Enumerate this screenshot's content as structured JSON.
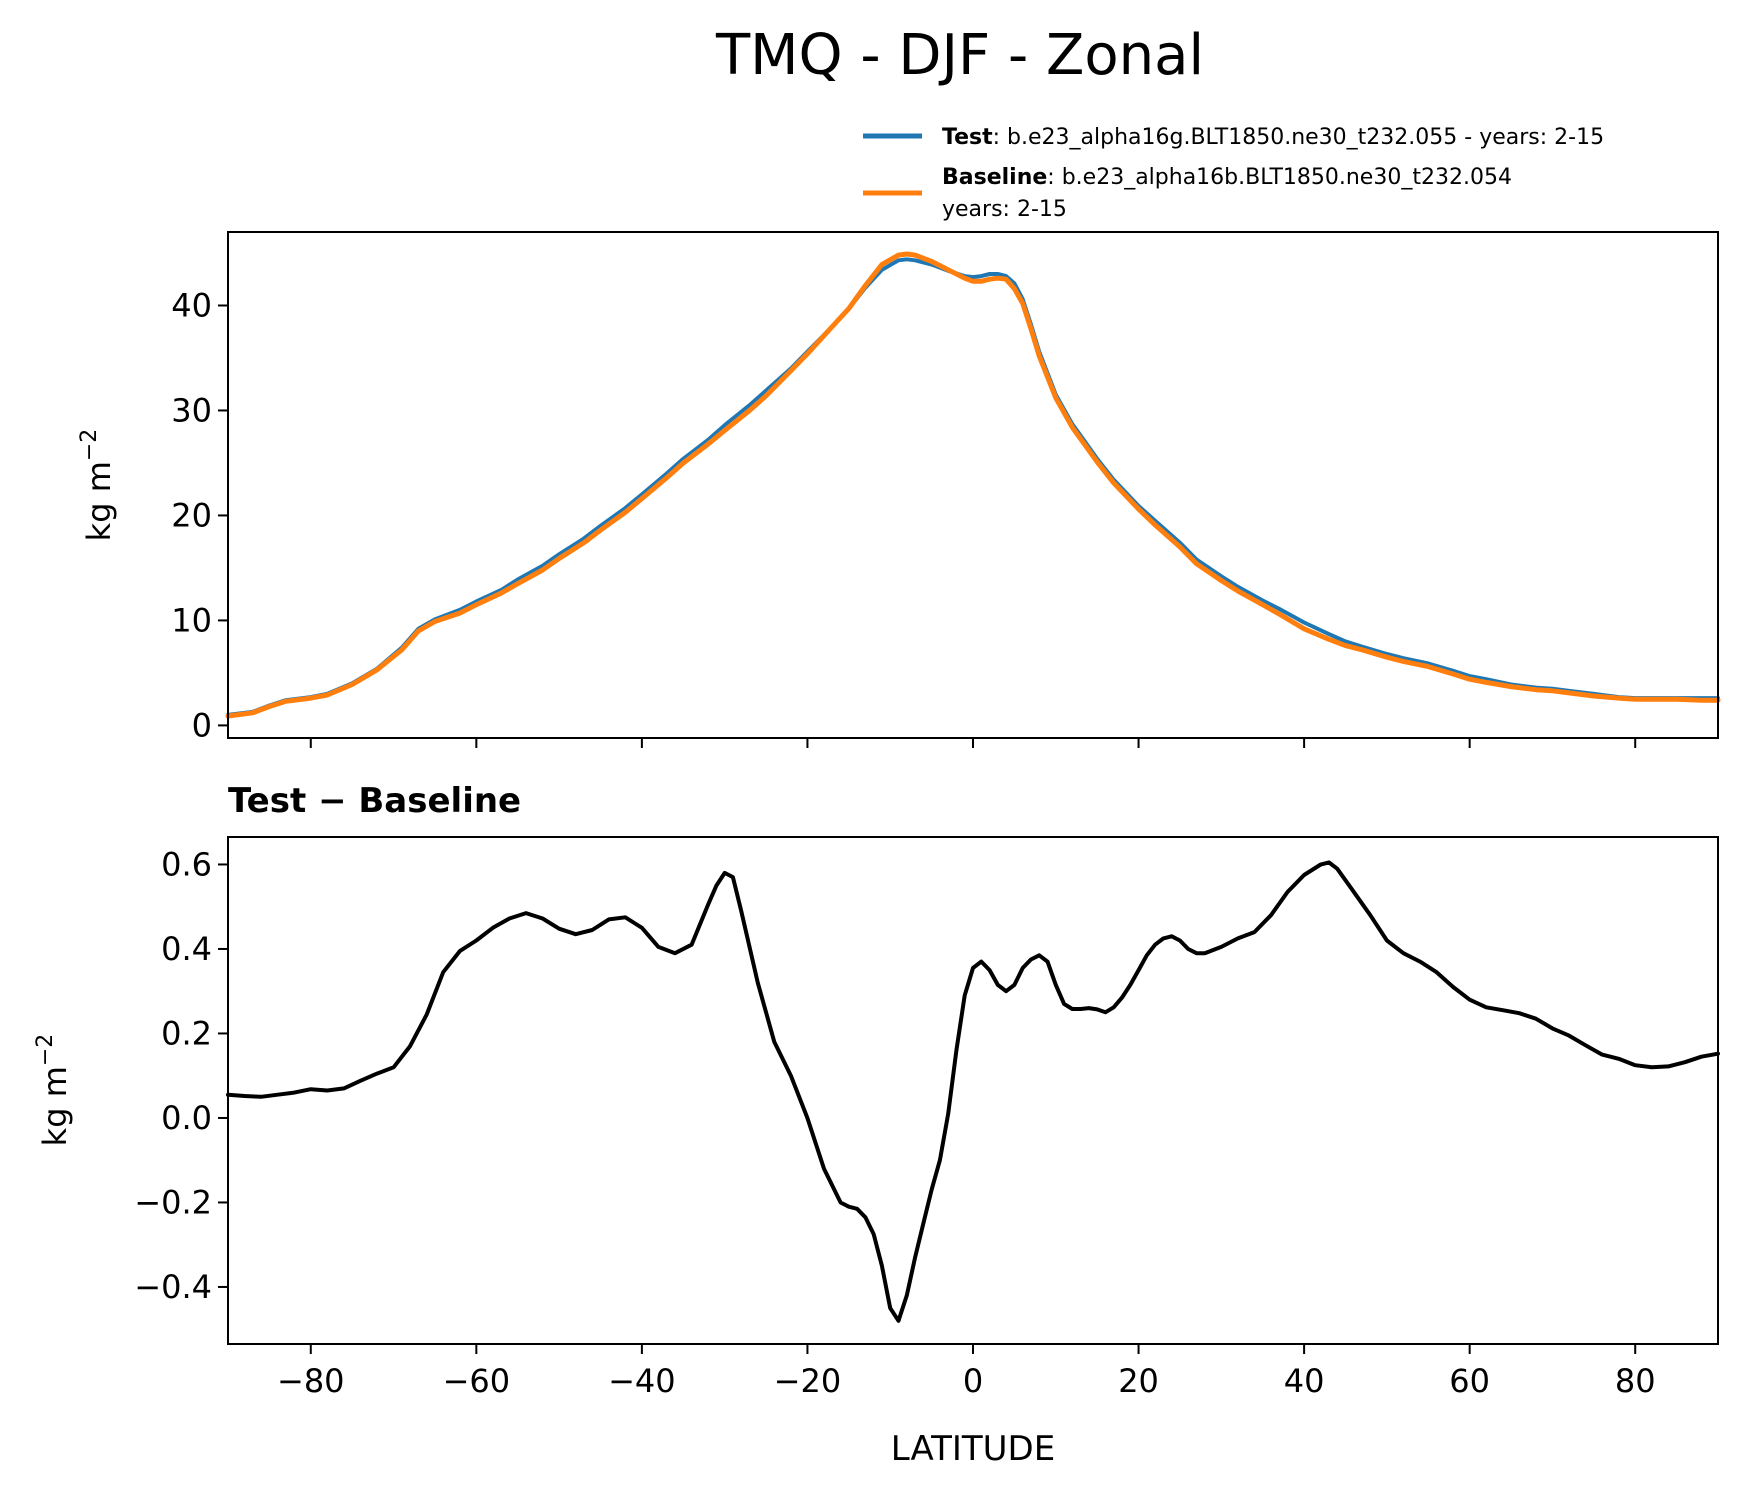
{
  "title": "TMQ - DJF - Zonal",
  "legend": {
    "test_name": "Test",
    "test_desc": ": b.e23_alpha16g.BLT1850.ne30_t232.055 - years: 2-15",
    "baseline_name": "Baseline",
    "baseline_desc": ": b.e23_alpha16b.BLT1850.ne30_t232.054",
    "baseline_desc2": "years: 2-15"
  },
  "colors": {
    "test": "#1f77b4",
    "baseline": "#ff7f0e",
    "diff": "#000000"
  },
  "chart_data": [
    {
      "type": "line",
      "title": "",
      "xlabel": "",
      "ylabel": "kg m^-2",
      "ylabel_base": "kg m",
      "ylabel_sup": "−2",
      "xlim": [
        -90,
        90
      ],
      "ylim": [
        -1.2,
        47
      ],
      "xticks": [
        -80,
        -60,
        -40,
        -20,
        0,
        20,
        40,
        60,
        80
      ],
      "yticks": [
        0,
        10,
        20,
        30,
        40
      ],
      "ytick_labels": [
        "0",
        "10",
        "20",
        "30",
        "40"
      ],
      "x": [
        -90,
        -87,
        -85,
        -83,
        -80,
        -78,
        -75,
        -72,
        -69,
        -67,
        -65,
        -62,
        -60,
        -57,
        -55,
        -52,
        -50,
        -47,
        -45,
        -42,
        -40,
        -37,
        -35,
        -32,
        -30,
        -27,
        -25,
        -22,
        -20,
        -17,
        -15,
        -13,
        -11,
        -9,
        -8,
        -7,
        -5,
        -3,
        -1,
        0,
        1,
        2,
        3,
        4,
        5,
        6,
        7,
        8,
        10,
        12,
        15,
        17,
        20,
        22,
        25,
        27,
        30,
        32,
        35,
        37,
        40,
        43,
        45,
        47,
        50,
        52,
        55,
        58,
        60,
        62,
        65,
        68,
        70,
        72,
        75,
        78,
        80,
        82,
        85,
        88,
        90
      ],
      "series": [
        {
          "name": "Test",
          "values": [
            1.0,
            1.3,
            1.9,
            2.4,
            2.7,
            3.0,
            4.0,
            5.4,
            7.4,
            9.2,
            10.1,
            11.0,
            11.8,
            12.9,
            13.9,
            15.2,
            16.3,
            17.8,
            19.0,
            20.7,
            22.0,
            24.0,
            25.4,
            27.2,
            28.6,
            30.5,
            31.9,
            34.0,
            35.6,
            38.0,
            39.7,
            41.7,
            43.4,
            44.3,
            44.4,
            44.3,
            43.9,
            43.3,
            42.8,
            42.7,
            42.8,
            43.0,
            43.0,
            42.8,
            42.1,
            40.6,
            38.2,
            35.6,
            31.5,
            28.7,
            25.4,
            23.4,
            20.9,
            19.5,
            17.4,
            15.8,
            14.2,
            13.2,
            11.9,
            11.1,
            9.8,
            8.7,
            8.0,
            7.5,
            6.8,
            6.4,
            5.9,
            5.2,
            4.7,
            4.4,
            3.9,
            3.6,
            3.5,
            3.3,
            3.0,
            2.7,
            2.6,
            2.6,
            2.6,
            2.6,
            2.6
          ]
        },
        {
          "name": "Baseline",
          "values": [
            0.9,
            1.2,
            1.8,
            2.3,
            2.6,
            2.9,
            3.9,
            5.3,
            7.2,
            9.0,
            9.9,
            10.7,
            11.5,
            12.6,
            13.5,
            14.8,
            15.9,
            17.4,
            18.6,
            20.3,
            21.6,
            23.6,
            25.0,
            26.8,
            28.1,
            30.0,
            31.4,
            33.8,
            35.4,
            38.0,
            39.7,
            41.9,
            43.9,
            44.8,
            44.9,
            44.8,
            44.2,
            43.4,
            42.6,
            42.3,
            42.3,
            42.5,
            42.6,
            42.5,
            41.6,
            40.2,
            37.8,
            35.2,
            31.2,
            28.4,
            25.1,
            23.1,
            20.6,
            19.1,
            17.0,
            15.4,
            13.8,
            12.8,
            11.5,
            10.6,
            9.2,
            8.2,
            7.6,
            7.2,
            6.5,
            6.1,
            5.6,
            4.9,
            4.4,
            4.1,
            3.7,
            3.4,
            3.3,
            3.1,
            2.8,
            2.6,
            2.5,
            2.5,
            2.5,
            2.4,
            2.4
          ]
        }
      ]
    },
    {
      "type": "line",
      "title": "Test − Baseline",
      "xlabel": "LATITUDE",
      "ylabel": "kg m^-2",
      "ylabel_base": "kg m",
      "ylabel_sup": "−2",
      "xlim": [
        -90,
        90
      ],
      "ylim": [
        -0.535,
        0.665
      ],
      "xticks": [
        -80,
        -60,
        -40,
        -20,
        0,
        20,
        40,
        60,
        80
      ],
      "xtick_labels": [
        "−80",
        "−60",
        "−40",
        "−20",
        "0",
        "20",
        "40",
        "60",
        "80"
      ],
      "yticks": [
        -0.4,
        -0.2,
        0.0,
        0.2,
        0.4,
        0.6
      ],
      "ytick_labels": [
        "−0.4",
        "−0.2",
        "0.0",
        "0.2",
        "0.4",
        "0.6"
      ],
      "series": [
        {
          "name": "Test − Baseline",
          "x": [
            -90,
            -88,
            -86,
            -84,
            -82,
            -80,
            -78,
            -76,
            -74,
            -72,
            -70,
            -68,
            -66,
            -64,
            -62,
            -60,
            -58,
            -56,
            -54,
            -52,
            -50,
            -48,
            -46,
            -44,
            -42,
            -40,
            -38,
            -36,
            -34,
            -32,
            -31,
            -30,
            -29,
            -28,
            -26,
            -24,
            -22,
            -20,
            -18,
            -16,
            -15,
            -14,
            -13,
            -12,
            -11,
            -10,
            -9,
            -8,
            -7,
            -6,
            -5,
            -4,
            -3,
            -2,
            -1,
            0,
            1,
            2,
            3,
            4,
            5,
            6,
            7,
            8,
            9,
            10,
            11,
            12,
            13,
            14,
            15,
            16,
            17,
            18,
            19,
            20,
            21,
            22,
            23,
            24,
            25,
            26,
            27,
            28,
            30,
            32,
            34,
            36,
            38,
            40,
            42,
            43,
            44,
            46,
            48,
            50,
            52,
            54,
            56,
            58,
            60,
            62,
            64,
            66,
            68,
            70,
            72,
            74,
            76,
            78,
            80,
            82,
            84,
            86,
            88,
            90
          ],
          "values": [
            0.055,
            0.052,
            0.05,
            0.055,
            0.06,
            0.068,
            0.065,
            0.07,
            0.088,
            0.105,
            0.12,
            0.17,
            0.245,
            0.345,
            0.395,
            0.42,
            0.45,
            0.472,
            0.485,
            0.472,
            0.448,
            0.435,
            0.445,
            0.47,
            0.475,
            0.45,
            0.405,
            0.39,
            0.41,
            0.505,
            0.55,
            0.58,
            0.57,
            0.49,
            0.32,
            0.18,
            0.1,
            0.0,
            -0.12,
            -0.2,
            -0.21,
            -0.215,
            -0.235,
            -0.275,
            -0.35,
            -0.45,
            -0.48,
            -0.42,
            -0.33,
            -0.25,
            -0.17,
            -0.1,
            0.01,
            0.16,
            0.29,
            0.355,
            0.37,
            0.35,
            0.315,
            0.3,
            0.315,
            0.355,
            0.375,
            0.385,
            0.37,
            0.315,
            0.27,
            0.258,
            0.258,
            0.26,
            0.257,
            0.25,
            0.262,
            0.285,
            0.315,
            0.35,
            0.385,
            0.41,
            0.425,
            0.43,
            0.42,
            0.4,
            0.39,
            0.39,
            0.405,
            0.425,
            0.44,
            0.48,
            0.535,
            0.575,
            0.6,
            0.605,
            0.59,
            0.535,
            0.48,
            0.42,
            0.39,
            0.37,
            0.345,
            0.31,
            0.28,
            0.262,
            0.255,
            0.248,
            0.235,
            0.212,
            0.195,
            0.172,
            0.15,
            0.14,
            0.125,
            0.12,
            0.122,
            0.132,
            0.145,
            0.152
          ]
        }
      ]
    }
  ]
}
